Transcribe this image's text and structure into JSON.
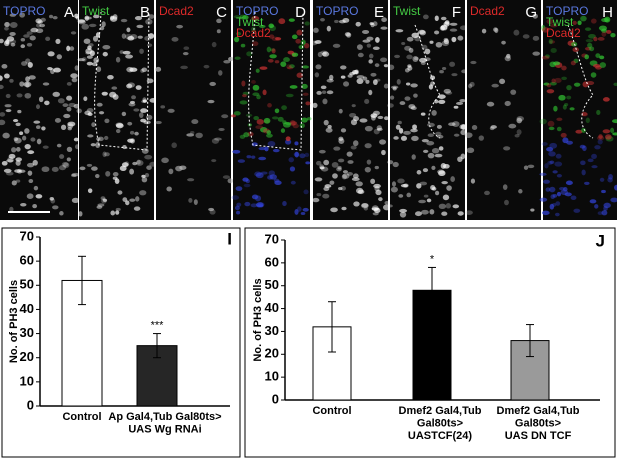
{
  "panels": [
    {
      "letter": "A",
      "labels": [
        {
          "text": "TOPRO",
          "color": "#5a78e0"
        }
      ]
    },
    {
      "letter": "B",
      "labels": [
        {
          "text": "Twist",
          "color": "#44cc44"
        }
      ]
    },
    {
      "letter": "C",
      "labels": [
        {
          "text": "Dcad2",
          "color": "#dd2a2a"
        }
      ]
    },
    {
      "letter": "D",
      "labels": [
        {
          "text": "TOPRO",
          "color": "#5a78e0"
        },
        {
          "text": "Twist",
          "color": "#44cc44"
        },
        {
          "text": "Dcad2",
          "color": "#dd2a2a"
        }
      ]
    },
    {
      "letter": "E",
      "labels": [
        {
          "text": "TOPRO",
          "color": "#5a78e0"
        }
      ]
    },
    {
      "letter": "F",
      "labels": [
        {
          "text": "Twist",
          "color": "#44cc44"
        }
      ]
    },
    {
      "letter": "G",
      "labels": [
        {
          "text": "Dcad2",
          "color": "#dd2a2a"
        }
      ]
    },
    {
      "letter": "H",
      "labels": [
        {
          "text": "TOPRO",
          "color": "#5a78e0"
        },
        {
          "text": "Twist",
          "color": "#44cc44"
        },
        {
          "text": "Dcad2",
          "color": "#dd2a2a"
        }
      ]
    }
  ],
  "chart_data": [
    {
      "type": "bar",
      "panel": "I",
      "ylabel": "No. of PH3 cells",
      "categories": [
        [
          "Control"
        ],
        [
          "Ap Gal4,Tub Gal80ts>",
          "UAS Wg RNAi"
        ]
      ],
      "values": [
        52,
        25
      ],
      "errors": [
        10,
        5
      ],
      "colors": [
        "#ffffff",
        "#262626"
      ],
      "significance": [
        null,
        "***"
      ],
      "ylim": [
        0,
        70
      ],
      "yticks": [
        0,
        10,
        20,
        30,
        40,
        50,
        60,
        70
      ]
    },
    {
      "type": "bar",
      "panel": "J",
      "ylabel": "No. of PH3 cells",
      "categories": [
        [
          "Control"
        ],
        [
          "Dmef2 Gal4,Tub",
          "Gal80ts>",
          "UASTCF(24)"
        ],
        [
          "Dmef2 Gal4,Tub",
          "Gal80ts>",
          "UAS DN TCF"
        ]
      ],
      "values": [
        32,
        48,
        26
      ],
      "errors": [
        11,
        10,
        7
      ],
      "colors": [
        "#ffffff",
        "#000000",
        "#9a9a9a"
      ],
      "significance": [
        null,
        "*",
        null
      ],
      "ylim": [
        0,
        70
      ],
      "yticks": [
        0,
        10,
        20,
        30,
        40,
        50,
        60,
        70
      ]
    }
  ]
}
